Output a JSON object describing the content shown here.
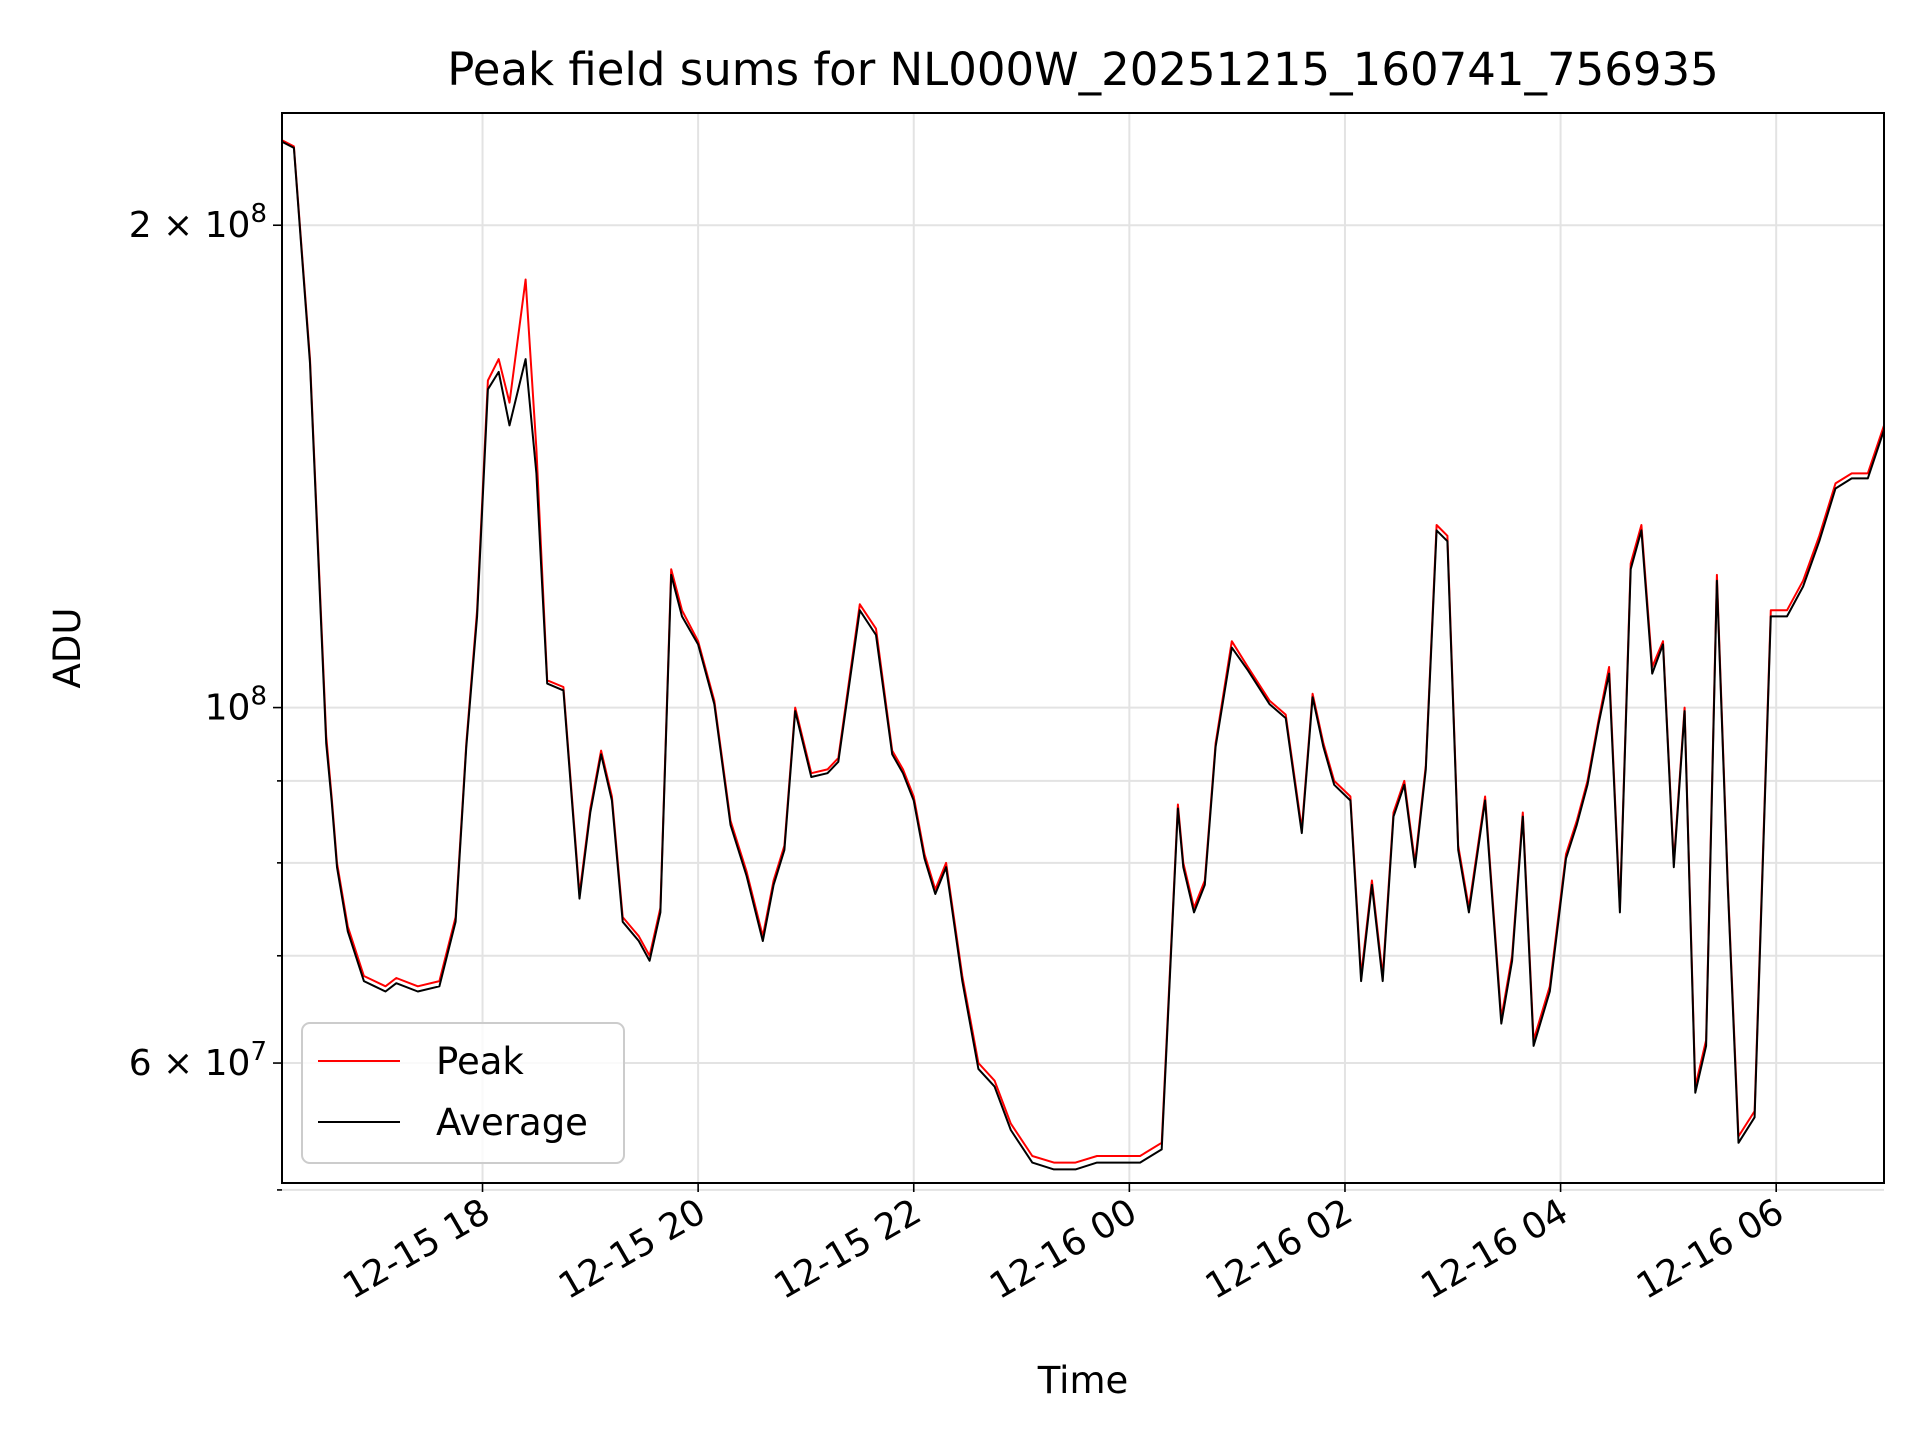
{
  "chart_data": {
    "type": "line",
    "title": "Peak field sums for NL000W_20251215_160741_756935",
    "xlabel": "Time",
    "ylabel": "ADU",
    "yscale": "log",
    "ylim": [
      50500000,
      235000000
    ],
    "xlim_hours": [
      16.14,
      31.0
    ],
    "grid": true,
    "legend_position": "lower-left",
    "x_tick_hours": [
      18,
      20,
      22,
      24,
      26,
      28,
      30
    ],
    "x_tick_labels": [
      "12-15 18",
      "12-15 20",
      "12-15 22",
      "12-16 00",
      "12-16 02",
      "12-16 04",
      "12-16 06"
    ],
    "y_major_ticks": [
      60000000,
      100000000,
      200000000
    ],
    "y_major_labels": [
      {
        "mant": "6",
        "times": "×",
        "base": "10",
        "exp": "7"
      },
      {
        "mant": "",
        "times": "",
        "base": "10",
        "exp": "8"
      },
      {
        "mant": "2",
        "times": "×",
        "base": "10",
        "exp": "8"
      }
    ],
    "y_minor_ticks": [
      50000000,
      70000000,
      80000000,
      90000000
    ],
    "x_hours": [
      16.14,
      16.25,
      16.4,
      16.55,
      16.6,
      16.65,
      16.75,
      16.9,
      17.0,
      17.1,
      17.2,
      17.4,
      17.6,
      17.75,
      17.85,
      17.95,
      18.05,
      18.15,
      18.25,
      18.4,
      18.5,
      18.6,
      18.75,
      18.9,
      19.0,
      19.1,
      19.2,
      19.3,
      19.45,
      19.55,
      19.65,
      19.75,
      19.85,
      20.0,
      20.15,
      20.3,
      20.45,
      20.6,
      20.7,
      20.8,
      20.9,
      21.05,
      21.2,
      21.3,
      21.5,
      21.65,
      21.8,
      21.9,
      22.0,
      22.1,
      22.2,
      22.3,
      22.45,
      22.6,
      22.75,
      22.9,
      23.1,
      23.3,
      23.5,
      23.7,
      23.9,
      24.1,
      24.3,
      24.45,
      24.5,
      24.6,
      24.7,
      24.8,
      24.95,
      25.1,
      25.3,
      25.45,
      25.6,
      25.7,
      25.8,
      25.9,
      26.05,
      26.15,
      26.25,
      26.35,
      26.45,
      26.55,
      26.65,
      26.75,
      26.85,
      26.95,
      27.05,
      27.15,
      27.3,
      27.45,
      27.55,
      27.65,
      27.75,
      27.9,
      28.05,
      28.15,
      28.25,
      28.35,
      28.45,
      28.55,
      28.65,
      28.75,
      28.85,
      28.95,
      29.05,
      29.15,
      29.25,
      29.35,
      29.45,
      29.55,
      29.65,
      29.8,
      29.95,
      30.1,
      30.25,
      30.4,
      30.55,
      30.7,
      30.85,
      31.0
    ],
    "series": [
      {
        "name": "Peak",
        "color": "#ff0000",
        "values": [
          226000000,
          224000000,
          165000000,
          96000000,
          88000000,
          80000000,
          73000000,
          68000000,
          67500000,
          67000000,
          67800000,
          67000000,
          67500000,
          74000000,
          95000000,
          115000000,
          160000000,
          165000000,
          155000000,
          185000000,
          145000000,
          104000000,
          103000000,
          76500000,
          86500000,
          94000000,
          88000000,
          74000000,
          72000000,
          70000000,
          75000000,
          122000000,
          115000000,
          110000000,
          101000000,
          85000000,
          79000000,
          72000000,
          78000000,
          82000000,
          100000000,
          91000000,
          91500000,
          93000000,
          116000000,
          112000000,
          94000000,
          91500000,
          88000000,
          81000000,
          77000000,
          80000000,
          68000000,
          60000000,
          58500000,
          55000000,
          52500000,
          52000000,
          52000000,
          52500000,
          52500000,
          52500000,
          53500000,
          87000000,
          80000000,
          75000000,
          78000000,
          95000000,
          110000000,
          106000000,
          101000000,
          99000000,
          84000000,
          102000000,
          95000000,
          90000000,
          88000000,
          68000000,
          78000000,
          68000000,
          86000000,
          90000000,
          80000000,
          92000000,
          130000000,
          128000000,
          82000000,
          75000000,
          88000000,
          64000000,
          70000000,
          86000000,
          62000000,
          67000000,
          81000000,
          85000000,
          90000000,
          98000000,
          106000000,
          75000000,
          123000000,
          130000000,
          106000000,
          110000000,
          80000000,
          100000000,
          58000000,
          62000000,
          121000000,
          78000000,
          54000000,
          56000000,
          115000000,
          115000000,
          120000000,
          128000000,
          138000000,
          140000000,
          140000000,
          150000000
        ]
      },
      {
        "name": "Average",
        "color": "#000000",
        "values": [
          225500000,
          223500000,
          164000000,
          95000000,
          87500000,
          79500000,
          72500000,
          67500000,
          67000000,
          66500000,
          67300000,
          66500000,
          67000000,
          73500000,
          94500000,
          114000000,
          158000000,
          162000000,
          150000000,
          165000000,
          140000000,
          103500000,
          102500000,
          76000000,
          86000000,
          93500000,
          87500000,
          73500000,
          71500000,
          69500000,
          74500000,
          121000000,
          114000000,
          109500000,
          100500000,
          84500000,
          78500000,
          71500000,
          77500000,
          81500000,
          99500000,
          90500000,
          91000000,
          92500000,
          115000000,
          111000000,
          93500000,
          91000000,
          87500000,
          80500000,
          76500000,
          79500000,
          67500000,
          59500000,
          58000000,
          54500000,
          52000000,
          51500000,
          51500000,
          52000000,
          52000000,
          52000000,
          53000000,
          86500000,
          79500000,
          74500000,
          77500000,
          94500000,
          109000000,
          105500000,
          100500000,
          98500000,
          83500000,
          101500000,
          94500000,
          89500000,
          87500000,
          67500000,
          77500000,
          67500000,
          85500000,
          89500000,
          79500000,
          91500000,
          129000000,
          127000000,
          81500000,
          74500000,
          87500000,
          63500000,
          69500000,
          85500000,
          61500000,
          66500000,
          80500000,
          84500000,
          89500000,
          97500000,
          105000000,
          74500000,
          122000000,
          129000000,
          105000000,
          109500000,
          79500000,
          99500000,
          57500000,
          61500000,
          120000000,
          77500000,
          53500000,
          55500000,
          114000000,
          114000000,
          119000000,
          127000000,
          137000000,
          139000000,
          139000000,
          149000000
        ]
      }
    ]
  }
}
